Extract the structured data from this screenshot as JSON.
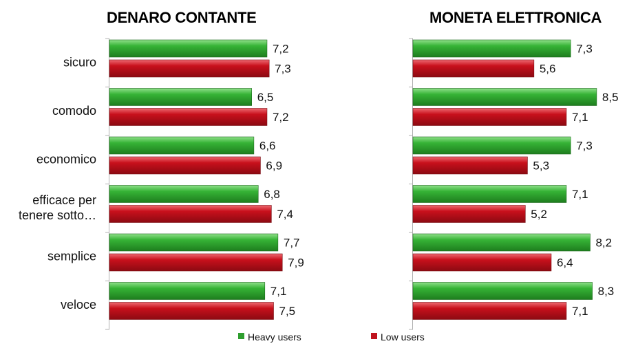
{
  "chart_data": [
    {
      "type": "bar",
      "orientation": "horizontal",
      "title": "DENARO CONTANTE",
      "categories": [
        "sicuro",
        "comodo",
        "economico",
        "efficace per tenere sotto…",
        "semplice",
        "veloce"
      ],
      "series": [
        {
          "name": "Heavy users",
          "values": [
            7.2,
            6.5,
            6.6,
            6.8,
            7.7,
            7.1
          ]
        },
        {
          "name": "Low users",
          "values": [
            7.3,
            7.2,
            6.9,
            7.4,
            7.9,
            7.5
          ]
        }
      ],
      "labels": {
        "Heavy users": [
          "7,2",
          "6,5",
          "6,6",
          "6,8",
          "7,7",
          "7,1"
        ],
        "Low users": [
          "7,3",
          "7,2",
          "6,9",
          "7,4",
          "7,9",
          "7,5"
        ]
      },
      "xlim": [
        0,
        10
      ]
    },
    {
      "type": "bar",
      "orientation": "horizontal",
      "title": "MONETA ELETTRONICA",
      "categories": [
        "sicuro",
        "comodo",
        "economico",
        "efficace per tenere sotto…",
        "semplice",
        "veloce"
      ],
      "series": [
        {
          "name": "Heavy users",
          "values": [
            7.3,
            8.5,
            7.3,
            7.1,
            8.2,
            8.3
          ]
        },
        {
          "name": "Low users",
          "values": [
            5.6,
            7.1,
            5.3,
            5.2,
            6.4,
            7.1
          ]
        }
      ],
      "labels": {
        "Heavy users": [
          "7,3",
          "8,5",
          "7,3",
          "7,1",
          "8,2",
          "8,3"
        ],
        "Low users": [
          "5,6",
          "7,1",
          "5,3",
          "5,2",
          "6,4",
          "7,1"
        ]
      },
      "xlim": [
        0,
        10
      ]
    }
  ],
  "category_lines": [
    [
      "sicuro"
    ],
    [
      "comodo"
    ],
    [
      "economico"
    ],
    [
      "efficace per",
      "tenere sotto…"
    ],
    [
      "semplice"
    ],
    [
      "veloce"
    ]
  ],
  "legend": [
    {
      "label": "Heavy users",
      "color": "#2e9e2e"
    },
    {
      "label": "Low users",
      "color": "#c0141e"
    }
  ],
  "colors": {
    "heavy": "#2e9e2e",
    "low": "#c0141e",
    "axis": "#b0b0b0"
  }
}
